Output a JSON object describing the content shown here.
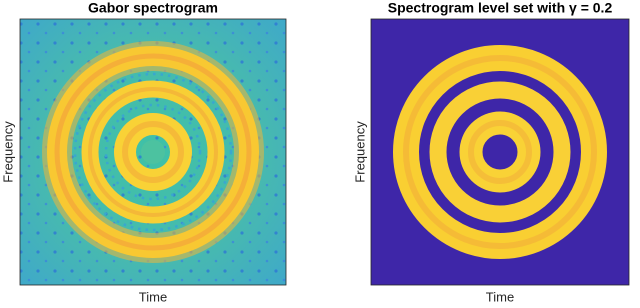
{
  "panels": [
    {
      "title": "Gabor spectrogram",
      "xlabel": "Time",
      "ylabel": "Frequency"
    },
    {
      "title": "Spectrogram level set with γ = 0.2",
      "xlabel": "Time",
      "ylabel": "Frequency"
    }
  ]
}
